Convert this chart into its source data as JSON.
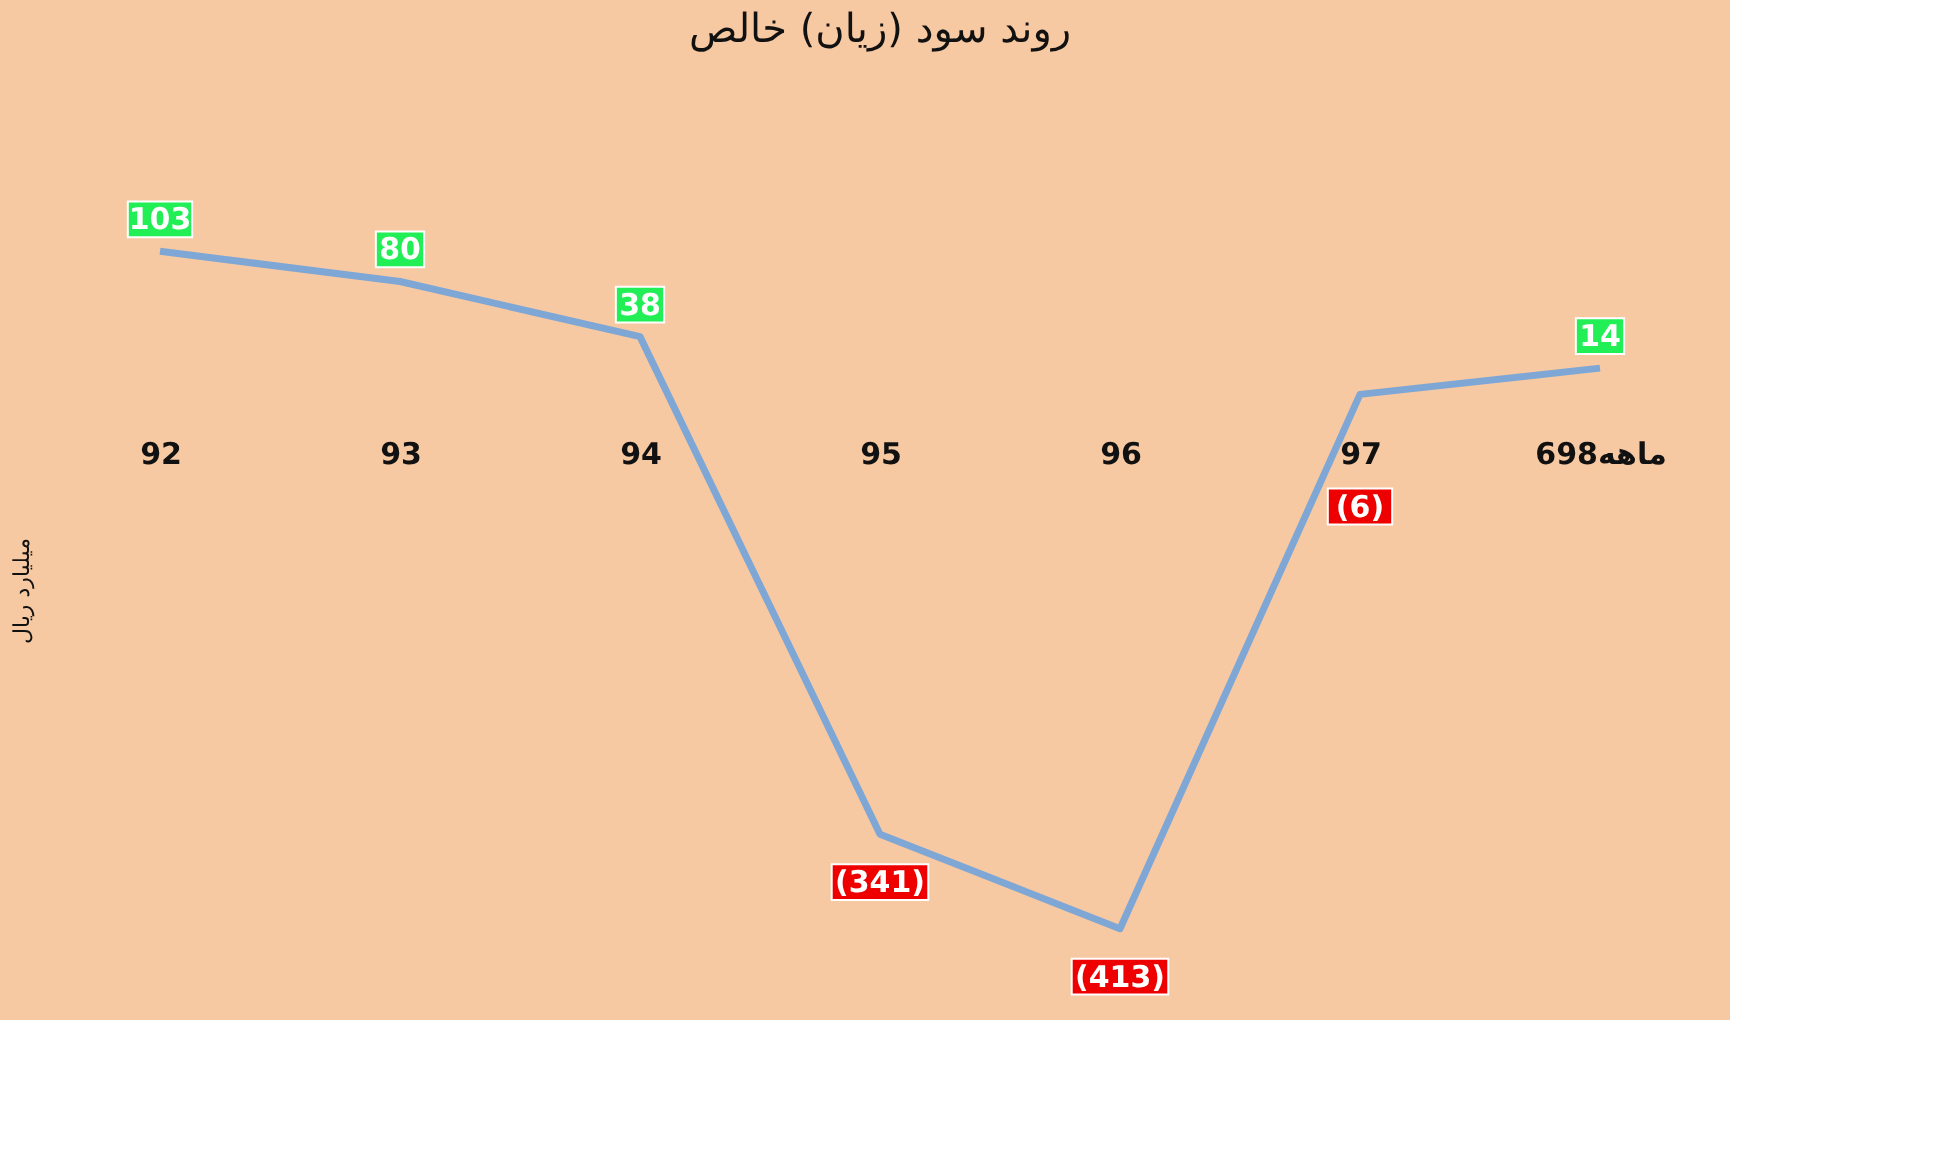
{
  "chart_data": {
    "type": "line",
    "title": "روند سود (زیان) خالص",
    "ylabel": "میلیارد ریال",
    "categories": [
      "92",
      "93",
      "94",
      "95",
      "96",
      "97",
      "6ماهه98"
    ],
    "series": [
      {
        "color": "#7fa7d6",
        "values": [
          103,
          80,
          38,
          -341,
          -413,
          -6,
          14
        ],
        "value_labels": [
          "103",
          "80",
          "38",
          "(341)",
          "(413)",
          "(6)",
          "14"
        ],
        "colors": [
          "#22ee55",
          "#22ee55",
          "#22ee55",
          "#ee0000",
          "#ee0000",
          "#ee0000",
          "#22ee55"
        ]
      }
    ],
    "grid": false,
    "tick_labels": "x"
  }
}
